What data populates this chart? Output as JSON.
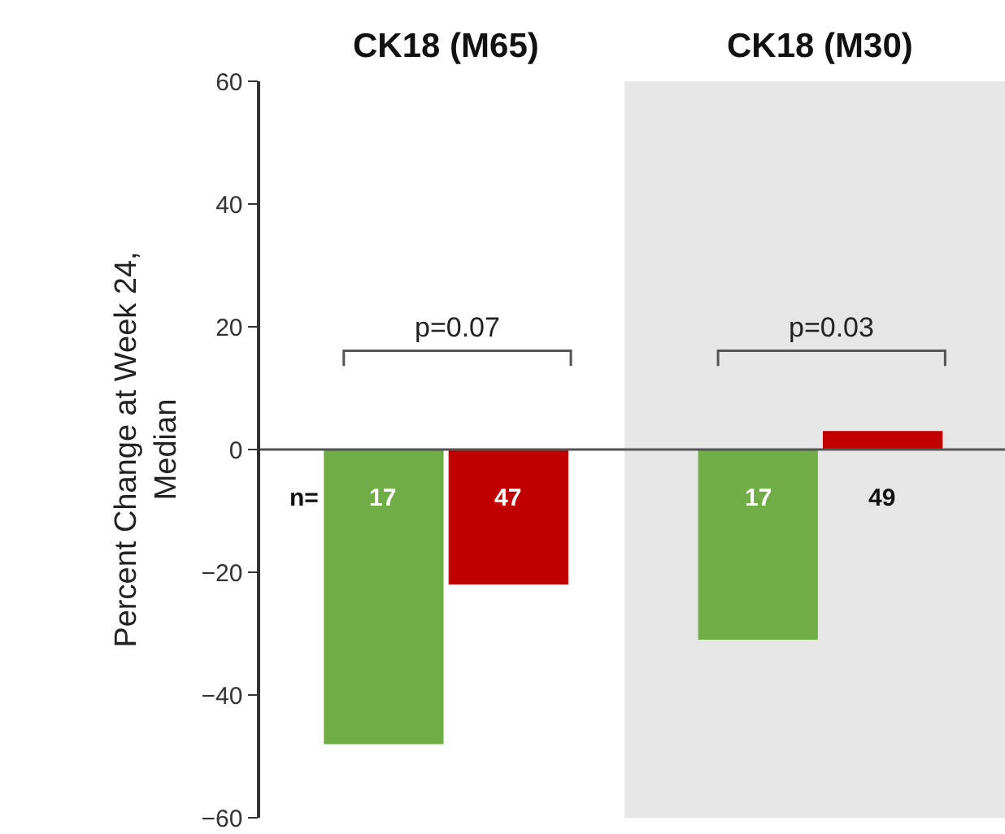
{
  "chart_data": {
    "type": "bar",
    "ylabel": "Percent Change at Week 24,\nMedian",
    "categories": [
      null,
      null,
      null,
      null
    ],
    "values": [
      -48,
      -22,
      -31,
      3
    ],
    "colors": [
      "#70ad47",
      "#c00000",
      "#70ad47",
      "#c00000"
    ],
    "ylim": [
      -60,
      60
    ],
    "yticks": [
      -60,
      -40,
      -20,
      0,
      20,
      40,
      60
    ],
    "annotations": [
      "CK18 (M65)",
      "CK18 (M30)",
      "p=0.07",
      "p=0.03",
      "n=",
      "17",
      "47",
      "17",
      "49"
    ],
    "ref_lines": [
      {
        "axis": "y",
        "value": 0
      }
    ],
    "grid": false
  }
}
